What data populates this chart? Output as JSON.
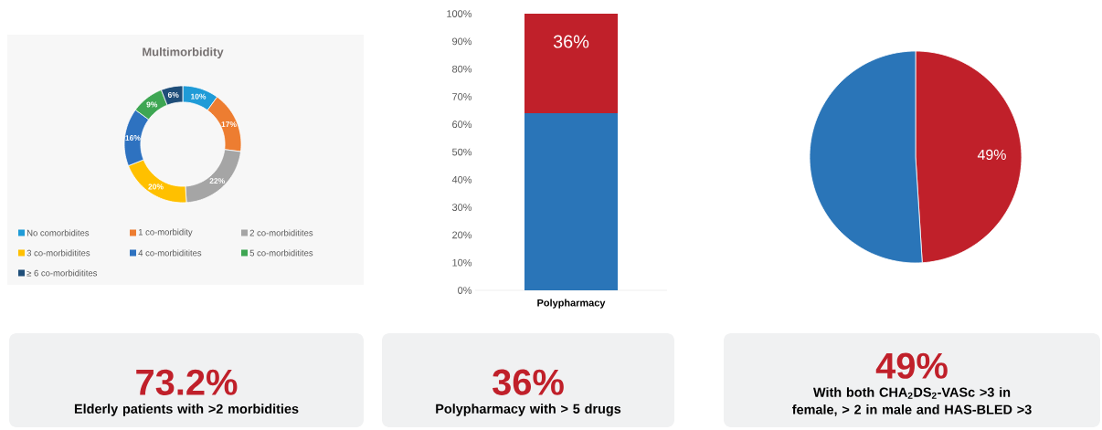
{
  "chart_data": [
    {
      "type": "donut",
      "title": "Multimorbidity",
      "categories": [
        "No comorbidites",
        "1 co-morbidity",
        "2 co-morbiditites",
        "3 co-morbiditites",
        "4 co-morbiditites",
        "5 co-morbiditites",
        "≥ 6 co-morbiditites"
      ],
      "values": [
        10,
        17,
        22,
        20,
        16,
        9,
        6
      ],
      "colors": [
        "#1f9bd7",
        "#ed7d31",
        "#a5a5a5",
        "#ffc000",
        "#2e72c0",
        "#3ea653",
        "#1f4e79"
      ],
      "value_labels": [
        "10%",
        "17%",
        "22%",
        "20%",
        "16%",
        "9%",
        "6%"
      ],
      "legend": "bottom"
    },
    {
      "type": "bar",
      "stacked": true,
      "categories": [
        "Polypharmacy"
      ],
      "series": [
        {
          "color": "#2a75b8",
          "values": [
            64
          ]
        },
        {
          "color": "#c0202a",
          "values": [
            36
          ],
          "value_labels": [
            "36%"
          ]
        }
      ],
      "ylim": [
        0,
        100
      ],
      "yticks": [
        {
          "value": 0,
          "label": "0%"
        },
        {
          "value": 10,
          "label": "10%"
        },
        {
          "value": 20,
          "label": "20%"
        },
        {
          "value": 30,
          "label": "30%"
        },
        {
          "value": 40,
          "label": "40%"
        },
        {
          "value": 50,
          "label": "50%"
        },
        {
          "value": 60,
          "label": "60%"
        },
        {
          "value": 70,
          "label": "70%"
        },
        {
          "value": 80,
          "label": "80%"
        },
        {
          "value": 90,
          "label": "90%"
        },
        {
          "value": 100,
          "label": "100%"
        }
      ]
    },
    {
      "type": "pie",
      "categories": [
        null,
        null
      ],
      "values": [
        49,
        51
      ],
      "colors": [
        "#c0202a",
        "#2a75b8"
      ],
      "value_labels": [
        "49%",
        null
      ]
    },
    {
      "type": "other",
      "title": "73.2%",
      "subtitle": "Elderly patients with >2 morbidities"
    },
    {
      "type": "other",
      "title": "36%",
      "subtitle": "Polypharmacy with > 5 drugs"
    },
    {
      "type": "other",
      "title": "49%",
      "subtitle": "With both CHA$_{2}$DS$_{2}$-VASc >3 in female, > 2 in male and HAS-BLED >3"
    }
  ]
}
